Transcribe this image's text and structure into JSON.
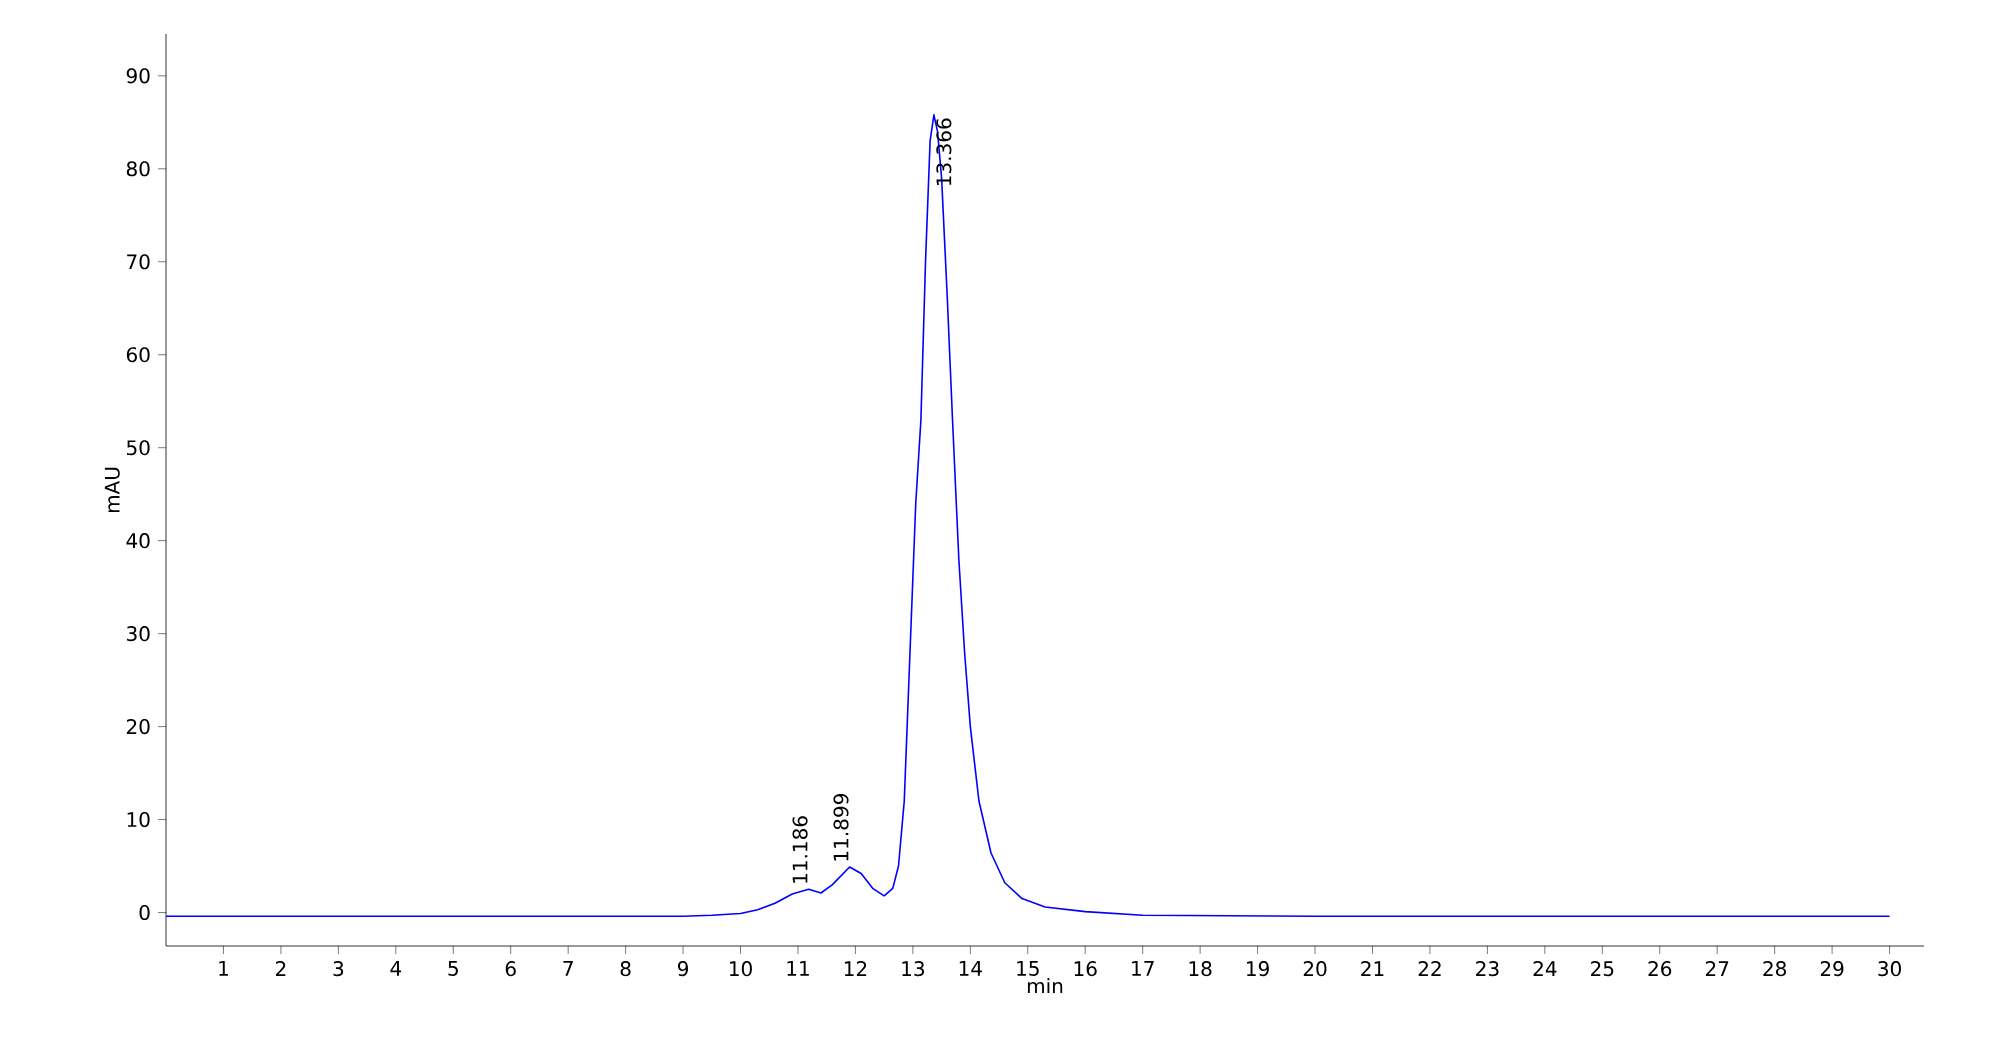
{
  "chart_data": {
    "type": "line",
    "xlabel": "min",
    "ylabel": "mAU",
    "xlim": [
      0,
      30.6
    ],
    "ylim": [
      -3.6,
      94.5
    ],
    "xticks": [
      1,
      2,
      3,
      4,
      5,
      6,
      7,
      8,
      9,
      10,
      11,
      12,
      13,
      14,
      15,
      16,
      17,
      18,
      19,
      20,
      21,
      22,
      23,
      24,
      25,
      26,
      27,
      28,
      29,
      30
    ],
    "yticks": [
      0,
      10,
      20,
      30,
      40,
      50,
      60,
      70,
      80,
      90
    ],
    "series": [
      {
        "color": "#0000ff",
        "x": [
          0,
          2,
          4,
          6,
          8,
          9,
          9.5,
          10,
          10.3,
          10.6,
          10.9,
          11.186,
          11.4,
          11.6,
          11.899,
          12.1,
          12.3,
          12.5,
          12.65,
          12.75,
          12.85,
          12.95,
          13.05,
          13.14,
          13.22,
          13.3,
          13.366,
          13.43,
          13.5,
          13.6,
          13.69,
          13.8,
          13.9,
          14.0,
          14.15,
          14.36,
          14.6,
          14.9,
          15.3,
          16,
          17,
          20,
          25,
          30
        ],
        "values": [
          -0.4,
          -0.4,
          -0.4,
          -0.4,
          -0.4,
          -0.4,
          -0.3,
          -0.1,
          0.3,
          1.0,
          2.0,
          2.5,
          2.1,
          3.0,
          4.9,
          4.2,
          2.6,
          1.8,
          2.6,
          5,
          12,
          28,
          44,
          53,
          70,
          83,
          85.8,
          84,
          79,
          66,
          53,
          38,
          28,
          20,
          12,
          6.4,
          3.2,
          1.5,
          0.6,
          0.1,
          -0.3,
          -0.4,
          -0.4,
          -0.4
        ]
      }
    ],
    "annotations": [
      {
        "text": "11.186",
        "x": 11.186,
        "y": 2.5
      },
      {
        "text": "11.899",
        "x": 11.899,
        "y": 4.9
      },
      {
        "text": "13.366",
        "x": 13.366,
        "y": 85.8
      }
    ]
  }
}
